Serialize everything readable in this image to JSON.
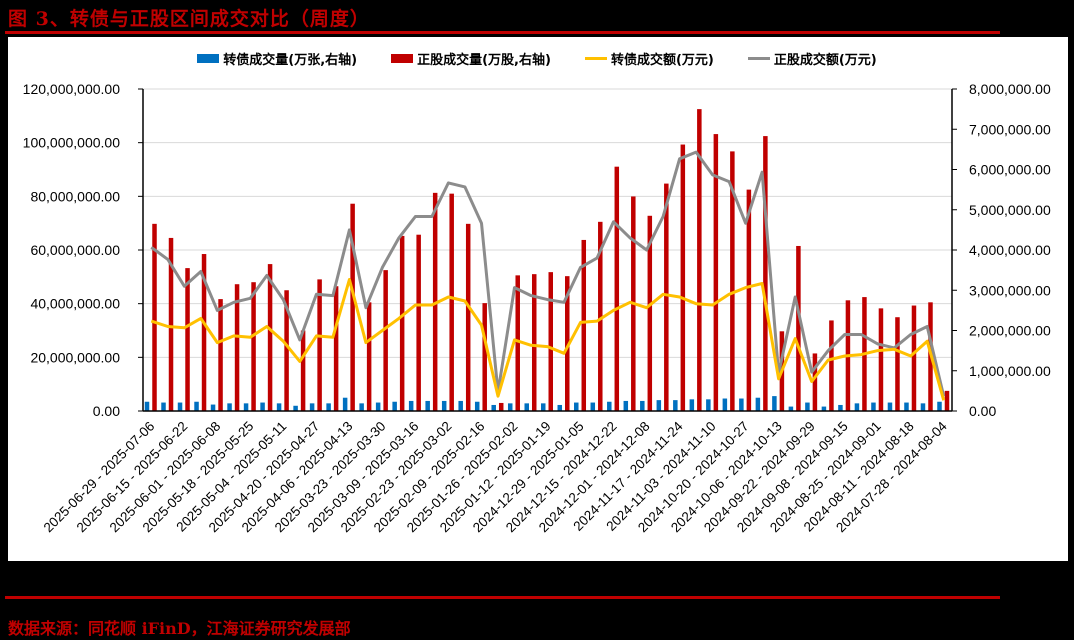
{
  "title": "图 3、转债与正股区间成交对比（周度）",
  "source": "数据来源：同花顺 iFinD，江海证券研究发展部",
  "legend": [
    {
      "label": "转债成交量(万张,右轴)",
      "color": "#0070c0",
      "kind": "bar"
    },
    {
      "label": "正股成交量(万股,右轴)",
      "color": "#c00000",
      "kind": "bar"
    },
    {
      "label": "转债成交额(万元)",
      "color": "#ffc000",
      "kind": "line"
    },
    {
      "label": "正股成交额(万元)",
      "color": "#8c8c8c",
      "kind": "line"
    }
  ],
  "chart_data": {
    "type": "bar+line",
    "title": "图 3、转债与正股区间成交对比（周度）",
    "xlabel": "",
    "left_axis": {
      "min": 0,
      "max": 120000000,
      "step": 20000000,
      "ticks": [
        "0.00",
        "20,000,000.00",
        "40,000,000.00",
        "60,000,000.00",
        "80,000,000.00",
        "100,000,000.00",
        "120,000,000.00"
      ]
    },
    "right_axis": {
      "min": 0,
      "max": 8000000,
      "step": 1000000,
      "ticks": [
        "0.00",
        "1,000,000.00",
        "2,000,000.00",
        "3,000,000.00",
        "4,000,000.00",
        "5,000,000.00",
        "6,000,000.00",
        "7,000,000.00",
        "8,000,000.00"
      ]
    },
    "grid": true,
    "legend_position": "top",
    "x_labels": [
      "2025-06-29 - 2025-07-06",
      "2025-06-15 - 2025-06-22",
      "2025-06-01 - 2025-06-08",
      "2025-05-18 - 2025-05-25",
      "2025-05-04 - 2025-05-11",
      "2025-04-20 - 2025-04-27",
      "2025-04-06 - 2025-04-13",
      "2025-03-23 - 2025-03-30",
      "2025-03-09 - 2025-03-16",
      "2025-02-23 - 2025-03-02",
      "2025-02-09 - 2025-02-16",
      "2025-01-26 - 2025-02-02",
      "2025-01-12 - 2025-01-19",
      "2024-12-29 - 2025-01-05",
      "2024-12-15 - 2024-12-22",
      "2024-12-01 - 2024-12-08",
      "2024-11-17 - 2024-11-24",
      "2024-11-03 - 2024-11-10",
      "2024-10-20 - 2024-10-27",
      "2024-10-06 - 2024-10-13",
      "2024-09-22 - 2024-09-29",
      "2024-09-08 - 2024-09-15",
      "2024-08-25 - 2024-09-01",
      "2024-08-11 - 2024-08-18",
      "2024-07-28 - 2024-08-04"
    ],
    "n_categories": 49,
    "series": [
      {
        "name": "转债成交量(万张,右轴)",
        "axis": "right",
        "type": "bar",
        "color": "#0070c0",
        "values": [
          230000,
          210000,
          210000,
          230000,
          160000,
          190000,
          190000,
          210000,
          190000,
          130000,
          190000,
          190000,
          330000,
          190000,
          210000,
          230000,
          250000,
          250000,
          250000,
          250000,
          230000,
          150000,
          190000,
          190000,
          190000,
          150000,
          210000,
          210000,
          230000,
          250000,
          250000,
          270000,
          270000,
          290000,
          290000,
          310000,
          310000,
          330000,
          370000,
          110000,
          210000,
          110000,
          150000,
          190000,
          210000,
          210000,
          210000,
          190000,
          230000
        ]
      },
      {
        "name": "正股成交量(万股,右轴)",
        "axis": "right",
        "type": "bar",
        "color": "#c00000",
        "values": [
          4650000,
          4300000,
          3550000,
          3900000,
          2780000,
          3150000,
          3200000,
          3650000,
          3000000,
          2000000,
          3270000,
          3100000,
          5150000,
          2700000,
          3500000,
          4350000,
          4380000,
          5420000,
          5400000,
          4650000,
          2680000,
          200000,
          3370000,
          3400000,
          3450000,
          3350000,
          4250000,
          4700000,
          6070000,
          5330000,
          4850000,
          5650000,
          6620000,
          7500000,
          6880000,
          6450000,
          5500000,
          6830000,
          1980000,
          4100000,
          1430000,
          2250000,
          2750000,
          2830000,
          2550000,
          2330000,
          2620000,
          2700000,
          500000
        ]
      },
      {
        "name": "转债成交额(万元)",
        "axis": "left",
        "type": "line",
        "color": "#ffc000",
        "values": [
          33500000,
          31500000,
          31000000,
          34500000,
          25500000,
          28000000,
          27500000,
          31500000,
          26000000,
          18500000,
          28000000,
          27500000,
          49000000,
          25500000,
          30000000,
          34500000,
          39500000,
          39500000,
          42500000,
          41000000,
          32000000,
          5500000,
          26500000,
          24500000,
          24000000,
          21500000,
          33000000,
          33500000,
          37500000,
          40500000,
          38500000,
          43500000,
          42500000,
          40000000,
          39500000,
          43500000,
          46000000,
          47500000,
          12000000,
          27000000,
          11000000,
          19000000,
          20500000,
          21000000,
          22500000,
          23000000,
          20500000,
          26000000,
          4000000
        ]
      },
      {
        "name": "正股成交额(万元)",
        "axis": "left",
        "type": "line",
        "color": "#8c8c8c",
        "values": [
          61000000,
          56500000,
          46500000,
          52000000,
          37500000,
          40500000,
          42000000,
          50500000,
          41500000,
          26500000,
          43500000,
          43000000,
          67500000,
          38500000,
          53500000,
          64500000,
          72500000,
          72500000,
          85000000,
          83500000,
          70000000,
          7000000,
          46000000,
          43000000,
          41500000,
          40500000,
          53500000,
          57000000,
          70500000,
          64500000,
          60000000,
          72500000,
          94000000,
          96500000,
          88000000,
          85500000,
          70000000,
          89000000,
          14000000,
          42500000,
          14500000,
          22500000,
          28500000,
          28500000,
          25000000,
          23500000,
          28500000,
          31500000,
          5500000
        ]
      }
    ]
  }
}
